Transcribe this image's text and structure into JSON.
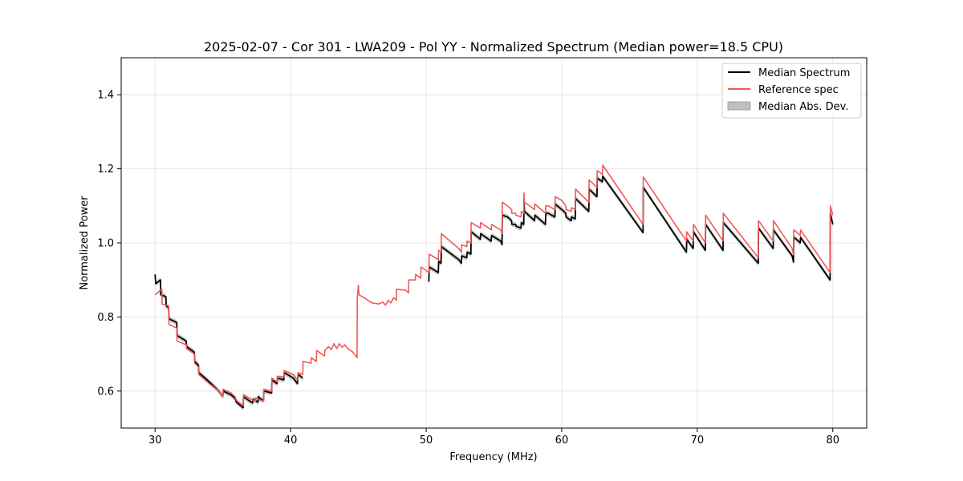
{
  "chart_data": {
    "type": "line",
    "title": "2025-02-07 - Cor 301 - LWA209 - Pol YY - Normalized Spectrum (Median power=18.5 CPU)",
    "xlabel": "Frequency (MHz)",
    "ylabel": "Normalized Power",
    "xlim": [
      27.5,
      82.5
    ],
    "ylim": [
      0.5,
      1.5
    ],
    "xticks": [
      30,
      40,
      50,
      60,
      70,
      80
    ],
    "yticks": [
      0.6,
      0.8,
      1.0,
      1.2,
      1.4
    ],
    "xtick_labels": [
      "30",
      "40",
      "50",
      "60",
      "70",
      "80"
    ],
    "ytick_labels": [
      "0.6",
      "0.8",
      "1.0",
      "1.2",
      "1.4"
    ],
    "grid": true,
    "legend_position": "top-right",
    "legend": {
      "median": "Median Spectrum",
      "reference": "Reference spec",
      "mad": "Median Abs. Dev."
    },
    "colors": {
      "median": "#000000",
      "reference": "#f05a5a",
      "mad_fill": "#bfbfbf",
      "grid": "#e6e6e6"
    },
    "mad_halfwidth": 0.007,
    "series": [
      {
        "name": "Median Spectrum",
        "segments": [
          [
            [
              30.0,
              0.915
            ],
            [
              30.05,
              0.89
            ],
            [
              30.4,
              0.9
            ],
            [
              30.42,
              0.86
            ],
            [
              30.8,
              0.855
            ],
            [
              30.82,
              0.83
            ],
            [
              31.0,
              0.825
            ],
            [
              31.02,
              0.795
            ],
            [
              31.6,
              0.785
            ],
            [
              31.62,
              0.75
            ],
            [
              32.3,
              0.735
            ],
            [
              32.32,
              0.72
            ],
            [
              32.9,
              0.705
            ],
            [
              32.92,
              0.68
            ],
            [
              33.2,
              0.67
            ],
            [
              33.22,
              0.65
            ],
            [
              34.0,
              0.625
            ],
            [
              34.7,
              0.6
            ],
            [
              35.0,
              0.585
            ],
            [
              35.02,
              0.6
            ],
            [
              35.6,
              0.59
            ],
            [
              35.9,
              0.58
            ],
            [
              36.0,
              0.57
            ],
            [
              36.5,
              0.555
            ],
            [
              36.52,
              0.585
            ],
            [
              36.9,
              0.575
            ],
            [
              37.2,
              0.568
            ],
            [
              37.22,
              0.578
            ],
            [
              37.6,
              0.57
            ],
            [
              37.62,
              0.585
            ],
            [
              37.8,
              0.578
            ],
            [
              38.0,
              0.575
            ],
            [
              38.02,
              0.6
            ],
            [
              38.6,
              0.595
            ],
            [
              38.62,
              0.63
            ],
            [
              39.0,
              0.62
            ],
            [
              39.02,
              0.635
            ],
            [
              39.5,
              0.63
            ],
            [
              39.52,
              0.65
            ],
            [
              40.2,
              0.635
            ],
            [
              40.5,
              0.62
            ],
            [
              40.55,
              0.645
            ],
            [
              40.9,
              0.635
            ]
          ],
          [
            [
              50.2,
              0.895
            ],
            [
              50.22,
              0.935
            ],
            [
              50.9,
              0.92
            ],
            [
              50.92,
              0.95
            ],
            [
              51.1,
              0.945
            ],
            [
              51.12,
              0.99
            ],
            [
              52.4,
              0.955
            ],
            [
              52.6,
              0.945
            ],
            [
              52.62,
              0.965
            ],
            [
              53.0,
              0.96
            ],
            [
              53.02,
              0.975
            ],
            [
              53.3,
              0.97
            ],
            [
              53.32,
              1.03
            ],
            [
              54.0,
              1.01
            ],
            [
              54.02,
              1.025
            ],
            [
              54.8,
              1.005
            ],
            [
              54.82,
              1.02
            ],
            [
              55.5,
              1.005
            ],
            [
              55.6,
              0.995
            ],
            [
              55.62,
              1.075
            ],
            [
              56.0,
              1.07
            ],
            [
              56.3,
              1.06
            ],
            [
              56.32,
              1.05
            ],
            [
              56.6,
              1.05
            ],
            [
              56.62,
              1.045
            ],
            [
              57.0,
              1.04
            ],
            [
              57.02,
              1.055
            ],
            [
              57.2,
              1.05
            ],
            [
              57.22,
              1.12
            ],
            [
              57.25,
              1.085
            ],
            [
              58.0,
              1.06
            ],
            [
              58.02,
              1.075
            ],
            [
              58.8,
              1.05
            ],
            [
              58.82,
              1.08
            ],
            [
              59.0,
              1.08
            ],
            [
              59.5,
              1.07
            ],
            [
              59.52,
              1.105
            ],
            [
              60.0,
              1.09
            ],
            [
              60.3,
              1.08
            ],
            [
              60.32,
              1.07
            ],
            [
              60.7,
              1.06
            ],
            [
              60.72,
              1.07
            ],
            [
              61.0,
              1.065
            ],
            [
              61.02,
              1.12
            ],
            [
              62.0,
              1.085
            ],
            [
              62.02,
              1.145
            ],
            [
              62.6,
              1.125
            ],
            [
              62.62,
              1.175
            ],
            [
              63.0,
              1.165
            ],
            [
              63.02,
              1.18
            ],
            [
              66.0,
              1.028
            ],
            [
              66.02,
              1.15
            ],
            [
              69.2,
              0.975
            ],
            [
              69.22,
              1.01
            ],
            [
              69.7,
              0.985
            ],
            [
              69.72,
              1.03
            ],
            [
              70.6,
              0.98
            ],
            [
              70.62,
              1.05
            ],
            [
              71.9,
              0.98
            ],
            [
              71.92,
              1.055
            ],
            [
              74.5,
              0.945
            ],
            [
              74.52,
              1.04
            ],
            [
              75.6,
              0.985
            ],
            [
              75.62,
              1.035
            ],
            [
              77.0,
              0.965
            ],
            [
              77.1,
              0.948
            ],
            [
              77.12,
              1.015
            ],
            [
              77.3,
              1.01
            ],
            [
              77.6,
              1.0
            ],
            [
              77.62,
              1.015
            ],
            [
              79.8,
              0.9
            ],
            [
              79.82,
              1.08
            ],
            [
              80.0,
              1.05
            ]
          ]
        ]
      },
      {
        "name": "Reference spec",
        "segments": [
          [
            [
              30.0,
              0.86
            ],
            [
              30.5,
              0.875
            ],
            [
              30.52,
              0.835
            ],
            [
              31.0,
              0.83
            ],
            [
              31.02,
              0.78
            ],
            [
              31.6,
              0.77
            ],
            [
              31.62,
              0.735
            ],
            [
              32.3,
              0.725
            ],
            [
              32.32,
              0.715
            ],
            [
              32.9,
              0.7
            ],
            [
              32.92,
              0.675
            ],
            [
              33.2,
              0.665
            ],
            [
              33.22,
              0.645
            ],
            [
              34.0,
              0.62
            ],
            [
              34.7,
              0.6
            ],
            [
              35.0,
              0.585
            ],
            [
              35.02,
              0.605
            ],
            [
              35.6,
              0.595
            ],
            [
              35.9,
              0.585
            ],
            [
              36.0,
              0.575
            ],
            [
              36.5,
              0.56
            ],
            [
              36.52,
              0.59
            ],
            [
              37.0,
              0.58
            ],
            [
              37.4,
              0.572
            ],
            [
              37.42,
              0.582
            ],
            [
              37.8,
              0.575
            ],
            [
              38.0,
              0.573
            ],
            [
              38.02,
              0.605
            ],
            [
              38.6,
              0.6
            ],
            [
              38.62,
              0.635
            ],
            [
              39.0,
              0.625
            ],
            [
              39.02,
              0.64
            ],
            [
              39.5,
              0.638
            ],
            [
              39.52,
              0.655
            ],
            [
              40.2,
              0.645
            ],
            [
              40.5,
              0.63
            ],
            [
              40.55,
              0.65
            ],
            [
              40.9,
              0.645
            ],
            [
              40.92,
              0.68
            ],
            [
              41.5,
              0.675
            ],
            [
              41.52,
              0.69
            ],
            [
              41.9,
              0.68
            ],
            [
              41.92,
              0.71
            ],
            [
              42.3,
              0.7
            ],
            [
              42.5,
              0.695
            ],
            [
              42.52,
              0.71
            ],
            [
              42.8,
              0.72
            ],
            [
              43.0,
              0.712
            ],
            [
              43.2,
              0.728
            ],
            [
              43.4,
              0.715
            ],
            [
              43.6,
              0.728
            ],
            [
              43.8,
              0.718
            ],
            [
              44.0,
              0.725
            ],
            [
              44.2,
              0.715
            ],
            [
              44.4,
              0.71
            ],
            [
              44.6,
              0.705
            ],
            [
              44.9,
              0.69
            ],
            [
              44.92,
              0.85
            ],
            [
              45.0,
              0.885
            ],
            [
              45.05,
              0.86
            ],
            [
              45.5,
              0.85
            ],
            [
              46.0,
              0.838
            ],
            [
              46.5,
              0.835
            ],
            [
              46.8,
              0.84
            ],
            [
              47.0,
              0.832
            ],
            [
              47.2,
              0.845
            ],
            [
              47.4,
              0.838
            ],
            [
              47.6,
              0.852
            ],
            [
              47.8,
              0.845
            ],
            [
              47.82,
              0.875
            ],
            [
              48.5,
              0.872
            ],
            [
              48.7,
              0.865
            ],
            [
              48.72,
              0.9
            ],
            [
              49.2,
              0.9
            ],
            [
              49.22,
              0.915
            ],
            [
              49.6,
              0.905
            ],
            [
              49.62,
              0.935
            ],
            [
              50.2,
              0.92
            ],
            [
              50.22,
              0.97
            ],
            [
              50.9,
              0.955
            ],
            [
              50.92,
              0.98
            ],
            [
              51.1,
              0.975
            ],
            [
              51.12,
              1.025
            ],
            [
              52.4,
              0.985
            ],
            [
              52.6,
              0.975
            ],
            [
              52.62,
              0.995
            ],
            [
              53.0,
              0.99
            ],
            [
              53.02,
              1.005
            ],
            [
              53.3,
              1.0
            ],
            [
              53.32,
              1.055
            ],
            [
              54.0,
              1.04
            ],
            [
              54.02,
              1.055
            ],
            [
              54.8,
              1.035
            ],
            [
              54.82,
              1.05
            ],
            [
              55.5,
              1.035
            ],
            [
              55.6,
              1.025
            ],
            [
              55.62,
              1.11
            ],
            [
              56.0,
              1.1
            ],
            [
              56.3,
              1.09
            ],
            [
              56.32,
              1.08
            ],
            [
              56.6,
              1.08
            ],
            [
              56.62,
              1.075
            ],
            [
              57.0,
              1.07
            ],
            [
              57.02,
              1.085
            ],
            [
              57.2,
              1.08
            ],
            [
              57.22,
              1.135
            ],
            [
              57.25,
              1.11
            ],
            [
              58.0,
              1.09
            ],
            [
              58.02,
              1.105
            ],
            [
              58.8,
              1.08
            ],
            [
              58.82,
              1.1
            ],
            [
              59.0,
              1.1
            ],
            [
              59.5,
              1.09
            ],
            [
              59.52,
              1.125
            ],
            [
              60.0,
              1.115
            ],
            [
              60.3,
              1.1
            ],
            [
              60.32,
              1.09
            ],
            [
              60.7,
              1.085
            ],
            [
              60.72,
              1.095
            ],
            [
              61.0,
              1.09
            ],
            [
              61.02,
              1.145
            ],
            [
              62.0,
              1.11
            ],
            [
              62.02,
              1.17
            ],
            [
              62.6,
              1.15
            ],
            [
              62.62,
              1.195
            ],
            [
              63.0,
              1.185
            ],
            [
              63.02,
              1.21
            ],
            [
              66.0,
              1.05
            ],
            [
              66.02,
              1.178
            ],
            [
              69.2,
              1.005
            ],
            [
              69.22,
              1.03
            ],
            [
              69.7,
              1.005
            ],
            [
              69.72,
              1.05
            ],
            [
              70.6,
              1.0
            ],
            [
              70.62,
              1.075
            ],
            [
              71.9,
              1.005
            ],
            [
              71.92,
              1.08
            ],
            [
              74.5,
              0.96
            ],
            [
              74.52,
              1.06
            ],
            [
              75.6,
              1.005
            ],
            [
              75.62,
              1.06
            ],
            [
              77.0,
              0.985
            ],
            [
              77.1,
              0.968
            ],
            [
              77.12,
              1.035
            ],
            [
              77.3,
              1.03
            ],
            [
              77.6,
              1.02
            ],
            [
              77.62,
              1.035
            ],
            [
              79.8,
              0.92
            ],
            [
              79.82,
              1.1
            ],
            [
              80.0,
              1.075
            ]
          ]
        ]
      }
    ]
  }
}
